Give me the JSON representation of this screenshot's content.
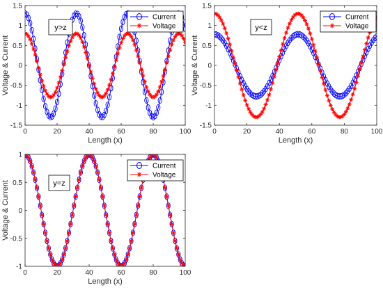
{
  "colors": {
    "current": "#0000ff",
    "voltage": "#ff0000",
    "axis": "#262626"
  },
  "chart_data": [
    {
      "type": "line",
      "annotation": "y>z",
      "xlabel": "Length (x)",
      "ylabel": "Voltage & Current",
      "xlim": [
        0,
        100
      ],
      "ylim": [
        -1.5,
        1.5
      ],
      "xticks": [
        0,
        20,
        40,
        60,
        80,
        100
      ],
      "yticks": [
        -1.5,
        -1,
        -0.5,
        0,
        0.5,
        1,
        1.5
      ],
      "legend": "top-right",
      "series": [
        {
          "name": "Current",
          "marker": "circle",
          "function": "cos",
          "amplitude": 1.3,
          "period": 32,
          "phase": 0
        },
        {
          "name": "Voltage",
          "marker": "star",
          "function": "cos",
          "amplitude": 0.8,
          "period": 32,
          "phase": 0
        }
      ]
    },
    {
      "type": "line",
      "annotation": "y<z",
      "xlabel": "Length (x)",
      "ylabel": "Voltage & Current",
      "xlim": [
        0,
        100
      ],
      "ylim": [
        -1.5,
        1.5
      ],
      "xticks": [
        0,
        20,
        40,
        60,
        80,
        100
      ],
      "yticks": [
        -1.5,
        -1,
        -0.5,
        0,
        0.5,
        1,
        1.5
      ],
      "legend": "top-right",
      "series": [
        {
          "name": "Current",
          "marker": "circle",
          "function": "cos",
          "amplitude": 0.78,
          "period": 51.5,
          "phase": 0
        },
        {
          "name": "Voltage",
          "marker": "star",
          "function": "cos",
          "amplitude": 1.3,
          "period": 51.5,
          "phase": 0
        }
      ]
    },
    {
      "type": "line",
      "annotation": "y=z",
      "xlabel": "Length (x)",
      "ylabel": "Voltage & Current",
      "xlim": [
        0,
        100
      ],
      "ylim": [
        -1,
        1
      ],
      "xticks": [
        0,
        20,
        40,
        60,
        80,
        100
      ],
      "yticks": [
        -1,
        -0.5,
        0,
        0.5,
        1
      ],
      "legend": "top-right",
      "series": [
        {
          "name": "Current",
          "marker": "circle",
          "function": "cos",
          "amplitude": 1.0,
          "period": 40,
          "phase": 0
        },
        {
          "name": "Voltage",
          "marker": "star",
          "function": "cos",
          "amplitude": 1.0,
          "period": 40,
          "phase": 0
        }
      ]
    }
  ]
}
